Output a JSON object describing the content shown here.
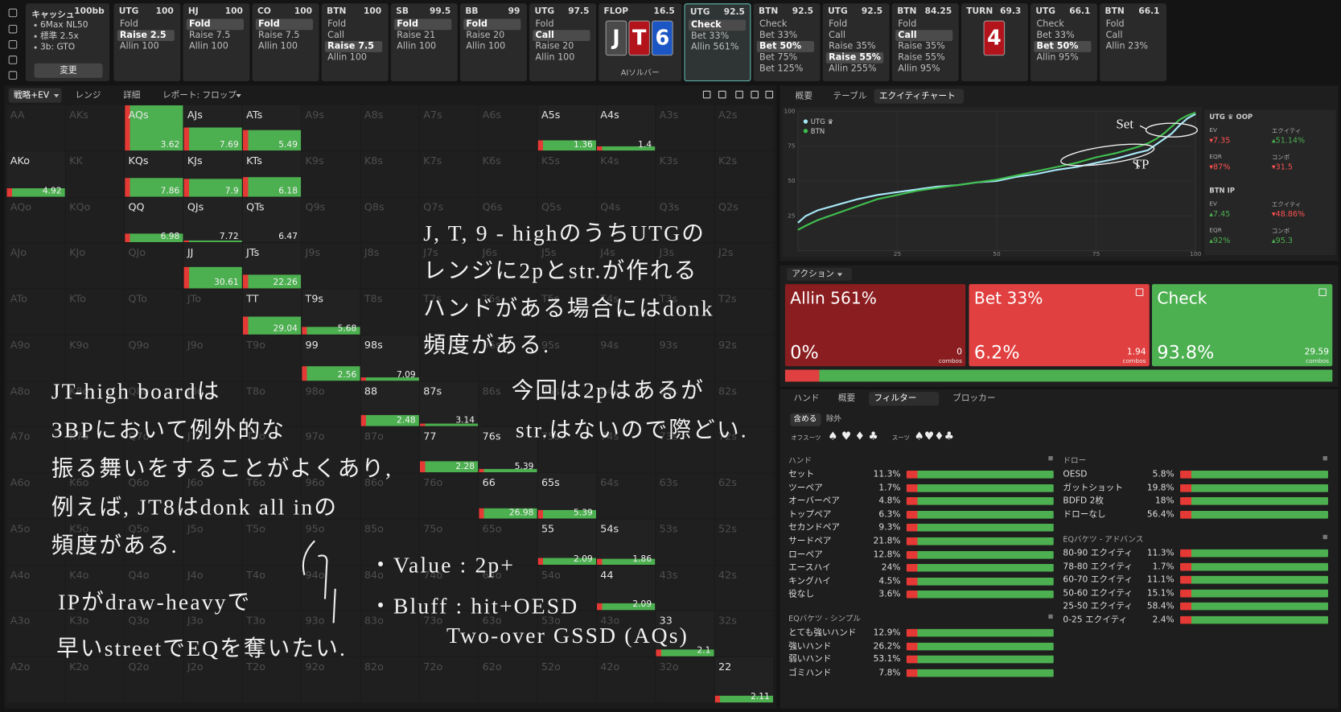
{
  "top_bar": {
    "cash": {
      "title": "キャッシュ",
      "stack": "100bb",
      "items": [
        "6Max NL50",
        "標準 2.5x",
        "3b: GTO"
      ],
      "button": "変更"
    },
    "columns": [
      {
        "pos": "UTG",
        "stack": 100,
        "actions": [
          "Fold",
          "Raise 2.5",
          "Allin 100"
        ],
        "selected": 1
      },
      {
        "pos": "HJ",
        "stack": 100,
        "actions": [
          "Fold",
          "Raise 7.5",
          "Allin 100"
        ],
        "selected": 0
      },
      {
        "pos": "CO",
        "stack": 100,
        "actions": [
          "Fold",
          "Raise 7.5",
          "Allin 100"
        ],
        "selected": 0
      },
      {
        "pos": "BTN",
        "stack": 100,
        "actions": [
          "Fold",
          "Call",
          "Raise 7.5",
          "Allin 100"
        ],
        "selected": 2
      },
      {
        "pos": "SB",
        "stack": 99.5,
        "actions": [
          "Fold",
          "Raise 21",
          "Allin 100"
        ],
        "selected": 0
      },
      {
        "pos": "BB",
        "stack": 99,
        "actions": [
          "Fold",
          "Raise 20",
          "Allin 100"
        ],
        "selected": 0
      },
      {
        "pos": "UTG",
        "stack": 97.5,
        "actions": [
          "Fold",
          "Call",
          "Raise 20",
          "Allin 100"
        ],
        "selected": 1
      },
      {
        "pos": "FLOP",
        "stack": 16.5,
        "cards": [
          {
            "rank": "J",
            "color": "#4a4a4a"
          },
          {
            "rank": "T",
            "color": "#b3141c"
          },
          {
            "rank": "6",
            "color": "#1c56c4"
          }
        ],
        "solver": "AIソルバー"
      },
      {
        "pos": "UTG",
        "stack": 92.5,
        "actions": [
          "Check",
          "Bet 33%",
          "Allin 561%"
        ],
        "selected": 0,
        "active": true
      },
      {
        "pos": "BTN",
        "stack": 92.5,
        "actions": [
          "Check",
          "Bet 33%",
          "Bet 50%",
          "Bet 75%",
          "Bet 125%"
        ],
        "selected": 2
      },
      {
        "pos": "UTG",
        "stack": 92.5,
        "actions": [
          "Fold",
          "Call",
          "Raise 35%",
          "Raise 55%",
          "Allin 255%"
        ],
        "selected": 3
      },
      {
        "pos": "BTN",
        "stack": 84.25,
        "actions": [
          "Fold",
          "Call",
          "Raise 35%",
          "Raise 55%",
          "Allin 95%"
        ],
        "selected": 1
      },
      {
        "pos": "TURN",
        "stack": 69.3,
        "cards": [
          {
            "rank": "4",
            "color": "#b3141c"
          }
        ]
      },
      {
        "pos": "UTG",
        "stack": 66.1,
        "actions": [
          "Check",
          "Bet 33%",
          "Bet 50%",
          "Allin 95%"
        ],
        "selected": 2
      },
      {
        "pos": "BTN",
        "stack": 66.1,
        "actions": [
          "Fold",
          "Call",
          "Allin 23%"
        ]
      }
    ]
  },
  "strategy_tabs": [
    "戦略+EV",
    "レンジ",
    "詳細",
    "レポート: フロップ"
  ],
  "hand_grid": {
    "rows": [
      [
        "AA",
        "AKs",
        "AQs",
        "AJs",
        "ATs",
        "A9s",
        "A8s",
        "A7s",
        "A6s",
        "A5s",
        "A4s",
        "A3s",
        "A2s"
      ],
      [
        "AKo",
        "KK",
        "KQs",
        "KJs",
        "KTs",
        "K9s",
        "K8s",
        "K7s",
        "K6s",
        "K5s",
        "K4s",
        "K3s",
        "K2s"
      ],
      [
        "AQo",
        "KQo",
        "QQ",
        "QJs",
        "QTs",
        "Q9s",
        "Q8s",
        "Q7s",
        "Q6s",
        "Q5s",
        "Q4s",
        "Q3s",
        "Q2s"
      ],
      [
        "AJo",
        "KJo",
        "QJo",
        "JJ",
        "JTs",
        "J9s",
        "J8s",
        "J7s",
        "J6s",
        "J5s",
        "J4s",
        "J3s",
        "J2s"
      ],
      [
        "ATo",
        "KTo",
        "QTo",
        "JTo",
        "TT",
        "T9s",
        "T8s",
        "T7s",
        "T6s",
        "T5s",
        "T4s",
        "T3s",
        "T2s"
      ],
      [
        "A9o",
        "K9o",
        "Q9o",
        "J9o",
        "T9o",
        "99",
        "98s",
        "97s",
        "96s",
        "95s",
        "94s",
        "93s",
        "92s"
      ],
      [
        "A8o",
        "K8o",
        "Q8o",
        "J8o",
        "T8o",
        "98o",
        "88",
        "87s",
        "86s",
        "85s",
        "84s",
        "83s",
        "82s"
      ],
      [
        "A7o",
        "K7o",
        "Q7o",
        "J7o",
        "T7o",
        "97o",
        "87o",
        "77",
        "76s",
        "75s",
        "74s",
        "73s",
        "72s"
      ],
      [
        "A6o",
        "K6o",
        "Q6o",
        "J6o",
        "T6o",
        "96o",
        "86o",
        "76o",
        "66",
        "65s",
        "64s",
        "63s",
        "62s"
      ],
      [
        "A5o",
        "K5o",
        "Q5o",
        "J5o",
        "T5o",
        "95o",
        "85o",
        "75o",
        "65o",
        "55",
        "54s",
        "53s",
        "52s"
      ],
      [
        "A4o",
        "K4o",
        "Q4o",
        "J4o",
        "T4o",
        "94o",
        "84o",
        "74o",
        "64o",
        "54o",
        "44",
        "43s",
        "42s"
      ],
      [
        "A3o",
        "K3o",
        "Q3o",
        "J3o",
        "T3o",
        "93o",
        "83o",
        "73o",
        "63o",
        "53o",
        "43o",
        "33",
        "32s"
      ],
      [
        "A2o",
        "K2o",
        "Q2o",
        "J2o",
        "T2o",
        "92o",
        "82o",
        "72o",
        "62o",
        "52o",
        "42o",
        "32o",
        "22"
      ]
    ],
    "ev": {
      "AQs": 3.62,
      "AJs": 7.69,
      "ATs": 5.49,
      "A5s": 1.36,
      "A4s": 1.4,
      "AKo": 4.92,
      "KQs": 7.86,
      "KJs": 7.9,
      "KTs": 6.18,
      "QQ": 6.98,
      "QJs": 7.72,
      "QTs": 6.47,
      "JJ": 30.61,
      "JTs": 22.26,
      "TT": 29.04,
      "T9s": 5.68,
      "99": 2.56,
      "98s": 7.09,
      "88": 2.48,
      "87s": 3.14,
      "77": 2.28,
      "76s": 5.39,
      "66": 26.98,
      "65s": 5.39,
      "55": 2.09,
      "54s": 1.86,
      "44": 2.09,
      "33": 2.1,
      "22": 2.11
    },
    "freq": {
      "AQs": 100,
      "AJs": 50,
      "ATs": 45,
      "A5s": 22,
      "A4s": 10,
      "AKo": 18,
      "KQs": 40,
      "KJs": 38,
      "KTs": 42,
      "QQ": 20,
      "QJs": 5,
      "QTs": 0,
      "JJ": 48,
      "JTs": 30,
      "TT": 40,
      "T9s": 16,
      "99": 32,
      "98s": 6,
      "88": 25,
      "87s": 6,
      "77": 25,
      "76s": 8,
      "66": 22,
      "65s": 18,
      "55": 14,
      "54s": 12,
      "44": 16,
      "33": 16,
      "22": 16
    }
  },
  "annotations": [
    {
      "lines": [
        "J, T, 9 - highのうちUTGの",
        "レンジに2pとstr.が作れる",
        "ハンドがある場合にはdonk",
        "頻度がある."
      ]
    },
    {
      "lines": [
        "今回は2pはあるが",
        "str.はないので際どい."
      ]
    },
    {
      "lines": [
        "JT-high boardは",
        "3BPにおいて例外的な",
        "振る舞いをすることがよくあり,",
        "例えば, JT8はdonk all inの",
        "頻度がある."
      ]
    },
    {
      "lines": [
        "IPがdraw-heavyで",
        "早いstreetでEQを奪いたい."
      ]
    },
    {
      "lines": [
        "・Value : 2p+",
        "・Bluff : hit+OESD",
        "Two-over GSSD (AQs)"
      ]
    }
  ],
  "right_tabs": [
    "概要",
    "テーブル",
    "エクイティチャート"
  ],
  "equity_chart": {
    "x": [
      0,
      2,
      5,
      10,
      15,
      20,
      25,
      30,
      35,
      40,
      45,
      50,
      55,
      60,
      65,
      70,
      75,
      80,
      85,
      88,
      90,
      92,
      94,
      96,
      98,
      100
    ],
    "series": [
      {
        "name": "UTG ♛",
        "color": "#a8e8f8",
        "values": [
          20,
          25,
          29,
          33,
          37,
          40,
          42,
          44,
          46,
          47,
          49,
          50,
          53,
          55,
          58,
          60,
          63,
          66,
          70,
          72,
          76,
          80,
          84,
          90,
          95,
          98
        ]
      },
      {
        "name": "BTN",
        "color": "#3fbf4f",
        "values": [
          15,
          18,
          22,
          27,
          32,
          37,
          40,
          43,
          45,
          47,
          49,
          51,
          54,
          57,
          60,
          63,
          67,
          70,
          74,
          77,
          80,
          84,
          89,
          94,
          97,
          99
        ]
      }
    ],
    "xlim": [
      0,
      100
    ],
    "ylim": [
      0,
      100
    ],
    "xticks": [
      25,
      50,
      75,
      100
    ],
    "yticks": [
      25,
      50,
      75,
      100
    ],
    "annotations": [
      "Set",
      "TP"
    ]
  },
  "stats": [
    {
      "title": "UTG ♛ OOP",
      "items": [
        {
          "label": "EV",
          "value": "▾7.35",
          "tone": "neg"
        },
        {
          "label": "エクイティ",
          "value": "▴51.14%",
          "tone": "pos"
        },
        {
          "label": "EQR",
          "value": "▾87%",
          "tone": "neg"
        },
        {
          "label": "コンボ",
          "value": "▾31.5",
          "tone": "neg"
        }
      ]
    },
    {
      "title": "BTN IP",
      "items": [
        {
          "label": "EV",
          "value": "▴7.45",
          "tone": "pos"
        },
        {
          "label": "エクイティ",
          "value": "▾48.86%",
          "tone": "neg"
        },
        {
          "label": "EQR",
          "value": "▴92%",
          "tone": "pos"
        },
        {
          "label": "コンボ",
          "value": "▴95.3",
          "tone": "pos"
        }
      ]
    }
  ],
  "actions": {
    "header": "アクション",
    "combos_word": "combos",
    "cards": [
      {
        "name": "Allin 561%",
        "freq": 0,
        "freq_label": "0%",
        "combos": "0",
        "color": "#8a1d1f"
      },
      {
        "name": "Bet 33%",
        "freq": 6.2,
        "freq_label": "6.2%",
        "combos": "1.94",
        "color": "#e0403f"
      },
      {
        "name": "Check",
        "freq": 93.8,
        "freq_label": "93.8%",
        "combos": "29.59",
        "color": "#4caf50"
      }
    ]
  },
  "filter": {
    "tabs": [
      "ハンド",
      "概要",
      "フィルター",
      "ブロッカー"
    ],
    "include": "含める",
    "exclude": "除外",
    "offsuit": "オフスーツ",
    "offsuit_icons": "♠ ♥ ♦ ♣",
    "suited": "スーツ",
    "suited_icons": "♠♥♦♣",
    "groups": [
      {
        "title": "ハンド",
        "rows": [
          [
            "セット",
            "11.3%"
          ],
          [
            "ツーペア",
            "1.7%"
          ],
          [
            "オーバーペア",
            "4.8%"
          ],
          [
            "トップペア",
            "6.3%"
          ],
          [
            "セカンドペア",
            "9.3%"
          ],
          [
            "サードペア",
            "21.8%"
          ],
          [
            "ローペア",
            "12.8%"
          ],
          [
            "エースハイ",
            "24%"
          ],
          [
            "キングハイ",
            "4.5%"
          ],
          [
            "役なし",
            "3.6%"
          ]
        ]
      },
      {
        "title": "EQバケツ - シンプル",
        "rows": [
          [
            "とても強いハンド",
            "12.9%"
          ],
          [
            "強いハンド",
            "26.2%"
          ],
          [
            "弱いハンド",
            "53.1%"
          ],
          [
            "ゴミハンド",
            "7.8%"
          ]
        ]
      },
      {
        "title": "ドロー",
        "rows": [
          [
            "OESD",
            "5.8%"
          ],
          [
            "ガットショット",
            "19.8%"
          ],
          [
            "BDFD 2枚",
            "18%"
          ],
          [
            "ドローなし",
            "56.4%"
          ]
        ]
      },
      {
        "title": "EQバケツ - アドバンス",
        "rows": [
          [
            "80-90 エクイティ",
            "11.3%"
          ],
          [
            "78-80 エクイティ",
            "1.7%"
          ],
          [
            "60-70 エクイティ",
            "11.1%"
          ],
          [
            "50-60 エクイティ",
            "15.1%"
          ],
          [
            "25-50 エクイティ",
            "58.4%"
          ],
          [
            "0-25 エクイティ",
            "2.4%"
          ]
        ]
      }
    ]
  }
}
